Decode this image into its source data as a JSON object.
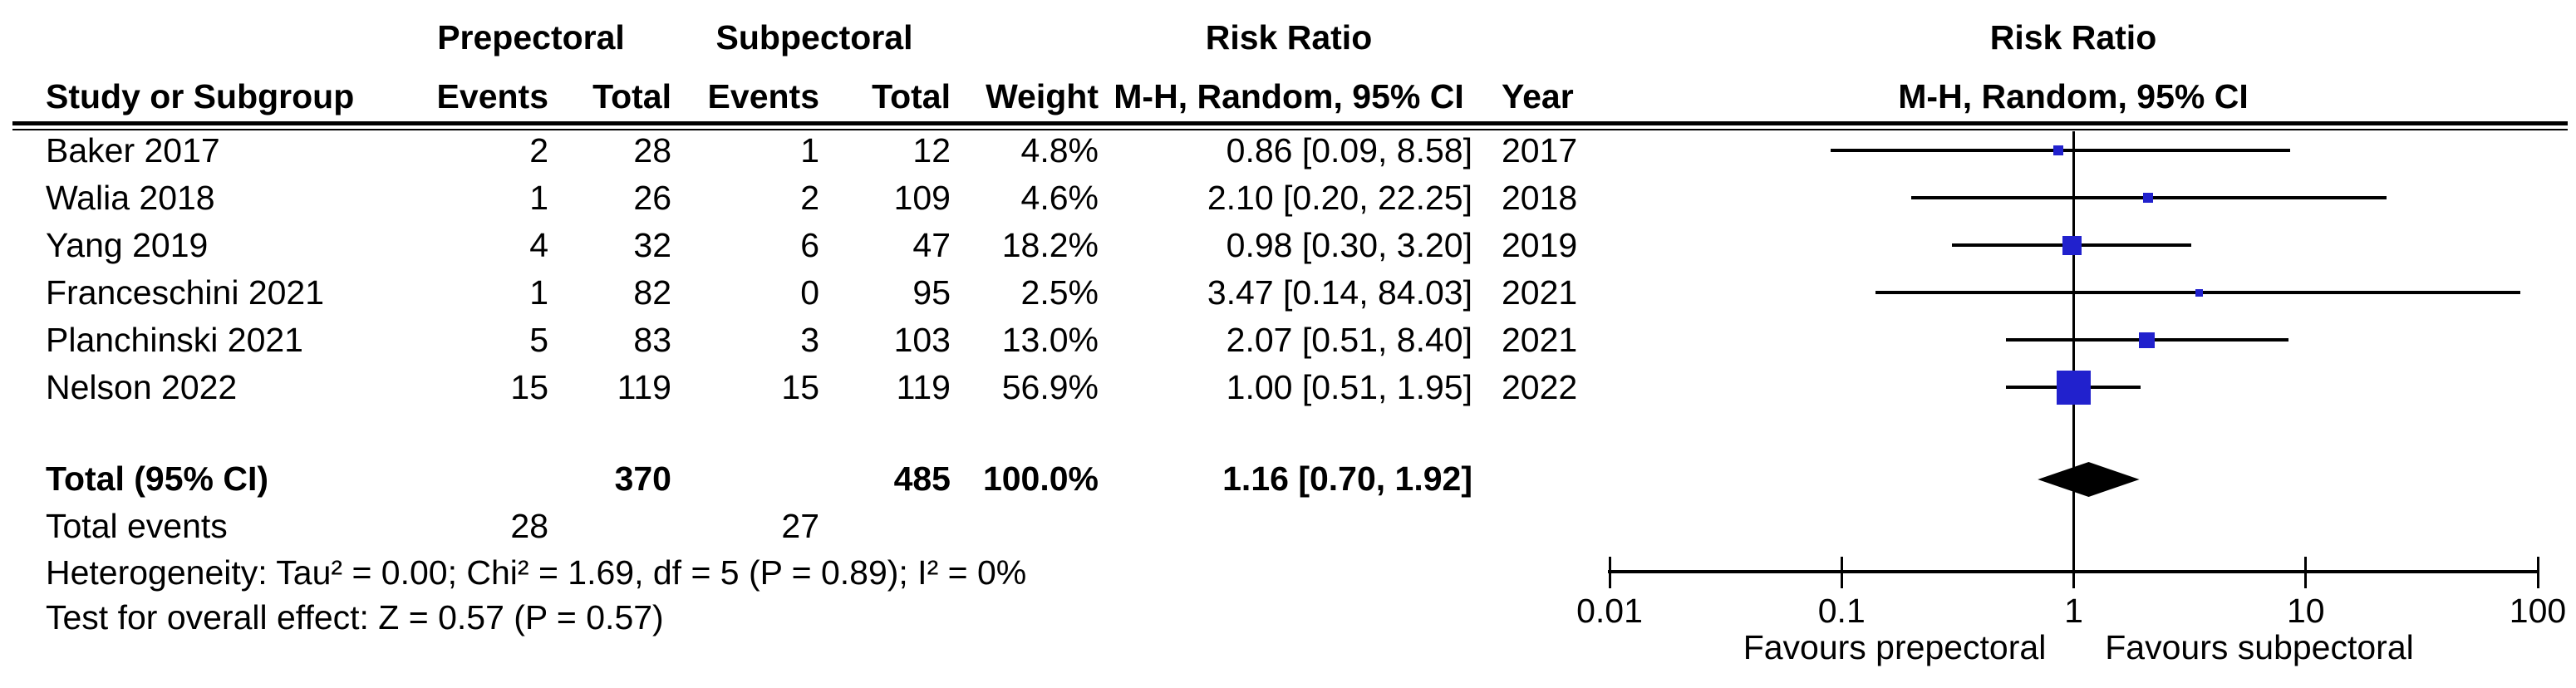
{
  "table": {
    "group1": "Prepectoral",
    "group2": "Subpectoral",
    "effect_header": "Risk Ratio",
    "effect_subheader": "M-H, Random, 95% CI",
    "columns": {
      "study": "Study or Subgroup",
      "events": "Events",
      "total": "Total",
      "weight": "Weight",
      "year": "Year"
    },
    "rows": [
      {
        "study": "Baker 2017",
        "e1": "2",
        "t1": "28",
        "e2": "1",
        "t2": "12",
        "weight": "4.8%",
        "ci": "0.86 [0.09, 8.58]",
        "year": "2017"
      },
      {
        "study": "Walia 2018",
        "e1": "1",
        "t1": "26",
        "e2": "2",
        "t2": "109",
        "weight": "4.6%",
        "ci": "2.10 [0.20, 22.25]",
        "year": "2018"
      },
      {
        "study": "Yang 2019",
        "e1": "4",
        "t1": "32",
        "e2": "6",
        "t2": "47",
        "weight": "18.2%",
        "ci": "0.98 [0.30, 3.20]",
        "year": "2019"
      },
      {
        "study": "Franceschini 2021",
        "e1": "1",
        "t1": "82",
        "e2": "0",
        "t2": "95",
        "weight": "2.5%",
        "ci": "3.47 [0.14, 84.03]",
        "year": "2021"
      },
      {
        "study": "Planchinski 2021",
        "e1": "5",
        "t1": "83",
        "e2": "3",
        "t2": "103",
        "weight": "13.0%",
        "ci": "2.07 [0.51, 8.40]",
        "year": "2021"
      },
      {
        "study": "Nelson 2022",
        "e1": "15",
        "t1": "119",
        "e2": "15",
        "t2": "119",
        "weight": "56.9%",
        "ci": "1.00 [0.51, 1.95]",
        "year": "2022"
      }
    ],
    "total_row": {
      "label": "Total (95% CI)",
      "t1": "370",
      "t2": "485",
      "weight": "100.0%",
      "ci": "1.16 [0.70, 1.92]"
    },
    "total_events": {
      "label": "Total events",
      "e1": "28",
      "e2": "27"
    },
    "heterogeneity": "Heterogeneity: Tau² = 0.00; Chi² = 1.69, df = 5 (P = 0.89); I² = 0%",
    "overall_effect": "Test for overall effect: Z = 0.57 (P = 0.57)"
  },
  "chart_data": {
    "type": "scatter",
    "subtype": "forest-plot",
    "title": "Risk Ratio",
    "method": "M-H, Random, 95% CI",
    "x_scale": "log10",
    "xlim": [
      0.01,
      100
    ],
    "axis_ticks": [
      "0.01",
      "0.1",
      "1",
      "10",
      "100"
    ],
    "null_line": 1,
    "favours_left": "Favours prepectoral",
    "favours_right": "Favours subpectoral",
    "marker_color": "#2121CD",
    "diamond_color": "#000000",
    "studies": [
      {
        "name": "Baker 2017",
        "rr": 0.86,
        "lo": 0.09,
        "hi": 8.58,
        "weight": 4.8
      },
      {
        "name": "Walia 2018",
        "rr": 2.1,
        "lo": 0.2,
        "hi": 22.25,
        "weight": 4.6
      },
      {
        "name": "Yang 2019",
        "rr": 0.98,
        "lo": 0.3,
        "hi": 3.2,
        "weight": 18.2
      },
      {
        "name": "Franceschini 2021",
        "rr": 3.47,
        "lo": 0.14,
        "hi": 84.03,
        "weight": 2.5
      },
      {
        "name": "Planchinski 2021",
        "rr": 2.07,
        "lo": 0.51,
        "hi": 8.4,
        "weight": 13.0
      },
      {
        "name": "Nelson 2022",
        "rr": 1.0,
        "lo": 0.51,
        "hi": 1.95,
        "weight": 56.9
      }
    ],
    "total": {
      "name": "Total (95% CI)",
      "rr": 1.16,
      "lo": 0.7,
      "hi": 1.92
    }
  }
}
